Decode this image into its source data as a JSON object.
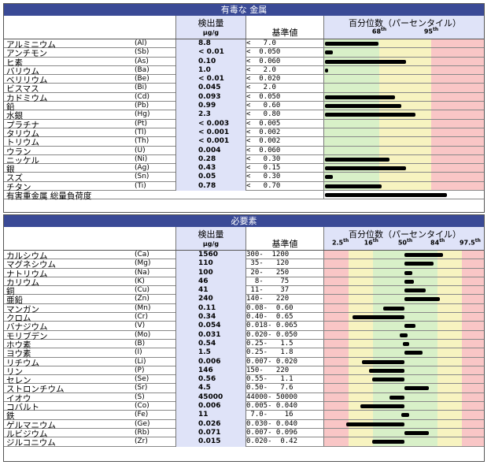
{
  "toxic": {
    "title": "有毒な 金属",
    "conc_header": "検出量",
    "unit": "µg/g",
    "ref_header": "基準値",
    "pct_header": "百分位数（パーセンタイル）",
    "ticks": [
      {
        "base": "68",
        "sup": "th"
      },
      {
        "base": "95",
        "sup": "th"
      }
    ],
    "rows": [
      {
        "name": "アルミニウム",
        "sym": "(Al)",
        "conc": "8.8",
        "ref": "<   7.0",
        "level": 0.33
      },
      {
        "name": "アンチモン",
        "sym": "(Sb)",
        "conc": "< 0.01",
        "ref": "<  0.050",
        "level": 0.05
      },
      {
        "name": "ヒ素",
        "sym": "(As)",
        "conc": "0.10",
        "ref": "<  0.060",
        "level": 0.5
      },
      {
        "name": "バリウム",
        "sym": "(Ba)",
        "conc": "1.0",
        "ref": "<   2.0",
        "level": 0.02
      },
      {
        "name": "ベリリウム",
        "sym": "(Be)",
        "conc": "< 0.01",
        "ref": "<  0.020",
        "level": 0.0
      },
      {
        "name": "ビスマス",
        "sym": "(Bi)",
        "conc": "0.045",
        "ref": "<   2.0",
        "level": 0.0
      },
      {
        "name": "カドミウム",
        "sym": "(Cd)",
        "conc": "0.093",
        "ref": "<  0.050",
        "level": 0.43
      },
      {
        "name": "鉛",
        "sym": "(Pb)",
        "conc": "0.99",
        "ref": "<   0.60",
        "level": 0.47
      },
      {
        "name": "水銀",
        "sym": "(Hg)",
        "conc": "2.3",
        "ref": "<   0.80",
        "level": 0.56
      },
      {
        "name": "プラチナ",
        "sym": "(Pt)",
        "conc": "< 0.003",
        "ref": "<  0.005",
        "level": 0.0
      },
      {
        "name": "タリウム",
        "sym": "(Tl)",
        "conc": "< 0.001",
        "ref": "<  0.002",
        "level": 0.0
      },
      {
        "name": "トリウム",
        "sym": "(Th)",
        "conc": "< 0.001",
        "ref": "<  0.002",
        "level": 0.0
      },
      {
        "name": "ウラン",
        "sym": "(U)",
        "conc": "0.004",
        "ref": "<  0.060",
        "level": 0.0
      },
      {
        "name": "ニッケル",
        "sym": "(Ni)",
        "conc": "0.28",
        "ref": "<   0.30",
        "level": 0.4
      },
      {
        "name": "銀",
        "sym": "(Ag)",
        "conc": "0.43",
        "ref": "<   0.15",
        "level": 0.5
      },
      {
        "name": "スズ",
        "sym": "(Sn)",
        "conc": "0.05",
        "ref": "<   0.30",
        "level": 0.05
      },
      {
        "name": "チタン",
        "sym": "(Ti)",
        "conc": "0.78",
        "ref": "<   0.70",
        "level": 0.35
      }
    ],
    "total_label": "有害重金属 総量負荷度",
    "total_level": 0.75
  },
  "essential": {
    "title": "必要素",
    "conc_header": "検出量",
    "unit": "µg/g",
    "ref_header": "基準値",
    "pct_header": "百分位数（パーセンタイル）",
    "ticks": [
      {
        "base": "2.5",
        "sup": "th"
      },
      {
        "base": "16",
        "sup": "th"
      },
      {
        "base": "50",
        "sup": "th"
      },
      {
        "base": "84",
        "sup": "th"
      },
      {
        "base": "97.5",
        "sup": "th"
      }
    ],
    "rows": [
      {
        "name": "カルシウム",
        "sym": "(Ca)",
        "conc": "1560",
        "ref": "300-  1200",
        "start": 0.5,
        "end": 0.74
      },
      {
        "name": "マグネシウム",
        "sym": "(Mg)",
        "conc": "110",
        "ref": " 35-   120",
        "start": 0.5,
        "end": 0.68
      },
      {
        "name": "ナトリウム",
        "sym": "(Na)",
        "conc": "100",
        "ref": " 20-   250",
        "start": 0.5,
        "end": 0.55
      },
      {
        "name": "カリウム",
        "sym": "(K)",
        "conc": "46",
        "ref": "  8-    75",
        "start": 0.5,
        "end": 0.56
      },
      {
        "name": "銅",
        "sym": "(Cu)",
        "conc": "41",
        "ref": " 11-    37",
        "start": 0.5,
        "end": 0.63
      },
      {
        "name": "亜鉛",
        "sym": "(Zn)",
        "conc": "240",
        "ref": "140-   220",
        "start": 0.5,
        "end": 0.72
      },
      {
        "name": "マンガン",
        "sym": "(Mn)",
        "conc": "0.11",
        "ref": "0.08-  0.60",
        "start": 0.37,
        "end": 0.5
      },
      {
        "name": "クロム",
        "sym": "(Cr)",
        "conc": "0.34",
        "ref": "0.40-  0.65",
        "start": 0.18,
        "end": 0.5
      },
      {
        "name": "バナジウム",
        "sym": "(V)",
        "conc": "0.054",
        "ref": "0.018- 0.065",
        "start": 0.5,
        "end": 0.57
      },
      {
        "name": "モリブデン",
        "sym": "(Mo)",
        "conc": "0.031",
        "ref": "0.020- 0.050",
        "start": 0.47,
        "end": 0.52
      },
      {
        "name": "ホウ素",
        "sym": "(B)",
        "conc": "0.54",
        "ref": "0.25-   1.5",
        "start": 0.49,
        "end": 0.53
      },
      {
        "name": "ヨウ素",
        "sym": "(I)",
        "conc": "1.5",
        "ref": "0.25-   1.8",
        "start": 0.5,
        "end": 0.61
      },
      {
        "name": "リチウム",
        "sym": "(Li)",
        "conc": "0.006",
        "ref": "0.007- 0.020",
        "start": 0.24,
        "end": 0.5
      },
      {
        "name": "リン",
        "sym": "(P)",
        "conc": "146",
        "ref": "150-   220",
        "start": 0.28,
        "end": 0.5
      },
      {
        "name": "セレン",
        "sym": "(Se)",
        "conc": "0.56",
        "ref": "0.55-   1.1",
        "start": 0.3,
        "end": 0.5
      },
      {
        "name": "ストロンチウム",
        "sym": "(Sr)",
        "conc": "4.5",
        "ref": "0.50-   7.6",
        "start": 0.5,
        "end": 0.65
      },
      {
        "name": "イオウ",
        "sym": "(S)",
        "conc": "45000",
        "ref": "44000- 50000",
        "start": 0.41,
        "end": 0.5
      },
      {
        "name": "コバルト",
        "sym": "(Co)",
        "conc": "0.006",
        "ref": "0.005- 0.040",
        "start": 0.23,
        "end": 0.5
      },
      {
        "name": "鉄",
        "sym": "(Fe)",
        "conc": "11",
        "ref": " 7.0-    16",
        "start": 0.48,
        "end": 0.53
      },
      {
        "name": "ゲルマニウム",
        "sym": "(Ge)",
        "conc": "0.026",
        "ref": "0.030- 0.040",
        "start": 0.14,
        "end": 0.5
      },
      {
        "name": "ルビジウム",
        "sym": "(Rb)",
        "conc": "0.071",
        "ref": "0.007- 0.096",
        "start": 0.5,
        "end": 0.65
      },
      {
        "name": "ジルコニウム",
        "sym": "(Zr)",
        "conc": "0.015",
        "ref": "0.020-  0.42",
        "start": 0.3,
        "end": 0.5
      }
    ]
  }
}
